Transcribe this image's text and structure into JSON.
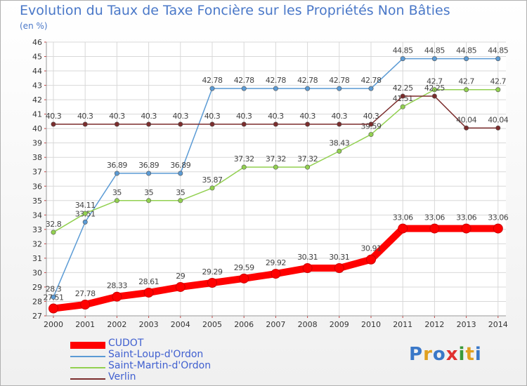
{
  "title": "Evolution du Taux de Taxe Foncière sur les Propriétés Non Bâties",
  "subtitle": "(en %)",
  "brand": {
    "letters": [
      "P",
      "r",
      "o",
      "x",
      "i",
      "t",
      "i"
    ],
    "colors": [
      "#3a78c8",
      "#e0a020",
      "#3a78c8",
      "#e03030",
      "#3a9a3a",
      "#e0a020",
      "#3a78c8"
    ]
  },
  "chart_data": {
    "type": "line",
    "title": "Evolution du Taux de Taxe Foncière sur les Propriétés Non Bâties",
    "ylabel": "(en %)",
    "xlabel": "",
    "x": [
      "2000",
      "2001",
      "2002",
      "2003",
      "2004",
      "2005",
      "2006",
      "2007",
      "2008",
      "2009",
      "2010",
      "2011",
      "2012",
      "2013",
      "2014"
    ],
    "ylim": [
      27,
      46
    ],
    "yticks": [
      "27",
      "28",
      "29",
      "30",
      "31",
      "32",
      "33",
      "34",
      "35",
      "36",
      "37",
      "38",
      "39",
      "40",
      "41",
      "42",
      "43",
      "44",
      "45",
      "46"
    ],
    "grid": true,
    "legend_position": "bottom-left",
    "series": [
      {
        "name": "Saint-Loup-d'Ordon",
        "color": "#5b9bd5",
        "values": [
          28.3,
          33.51,
          36.89,
          36.89,
          36.89,
          42.78,
          42.78,
          42.78,
          42.78,
          42.78,
          42.78,
          44.85,
          44.85,
          44.85,
          44.85
        ],
        "labels": [
          "28.3",
          "33.51",
          "36.89",
          "36.89",
          "36.89",
          "42.78",
          "42.78",
          "42.78",
          "42.78",
          "42.78",
          "42.78",
          "44.85",
          "44.85",
          "44.85",
          "44.85"
        ]
      },
      {
        "name": "Saint-Martin-d'Ordon",
        "color": "#92d050",
        "values": [
          32.8,
          34.11,
          35,
          35,
          35,
          35.87,
          37.32,
          37.32,
          37.32,
          38.43,
          39.59,
          41.51,
          42.7,
          42.7,
          42.7
        ],
        "labels": [
          "32.8",
          "34.11",
          "35",
          "35",
          "35",
          "35.87",
          "37.32",
          "37.32",
          "37.32",
          "38.43",
          "39.59",
          "41.51",
          "42.7",
          "42.7",
          "42.7"
        ]
      },
      {
        "name": "Verlin",
        "color": "#7b2c2c",
        "values": [
          40.3,
          40.3,
          40.3,
          40.3,
          40.3,
          40.3,
          40.3,
          40.3,
          40.3,
          40.3,
          40.3,
          42.25,
          42.25,
          40.04,
          40.04
        ],
        "labels": [
          "40.3",
          "40.3",
          "40.3",
          "40.3",
          "40.3",
          "40.3",
          "40.3",
          "40.3",
          "40.3",
          "40.3",
          "40.3",
          "42.25",
          "42.25",
          "40.04",
          "40.04"
        ]
      },
      {
        "name": "CUDOT",
        "color": "#ff0000",
        "values": [
          27.51,
          27.78,
          28.33,
          28.61,
          29,
          29.29,
          29.59,
          29.92,
          30.31,
          30.31,
          30.91,
          33.06,
          33.06,
          33.06,
          33.06
        ],
        "labels": [
          "27.51",
          "27.78",
          "28.33",
          "28.61",
          "29",
          "29.29",
          "29.59",
          "29.92",
          "30.31",
          "30.31",
          "30.91",
          "33.06",
          "33.06",
          "33.06",
          "33.06"
        ]
      }
    ],
    "legend": [
      {
        "name": "CUDOT",
        "color": "#ff0000"
      },
      {
        "name": "Saint-Loup-d'Ordon",
        "color": "#5b9bd5"
      },
      {
        "name": "Saint-Martin-d'Ordon",
        "color": "#92d050"
      },
      {
        "name": "Verlin",
        "color": "#7b2c2c"
      }
    ]
  }
}
